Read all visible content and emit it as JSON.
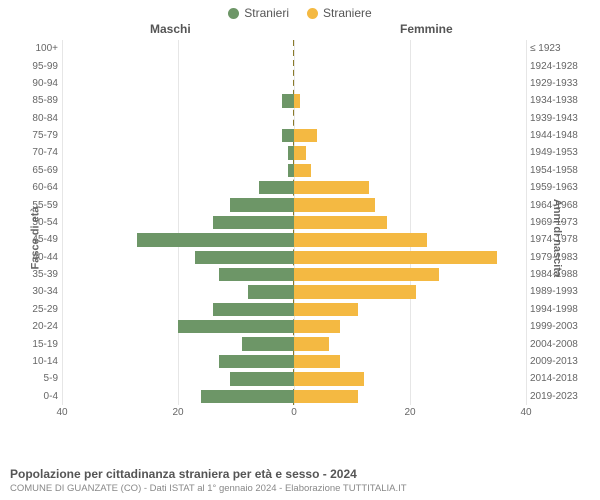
{
  "legend": {
    "male_label": "Stranieri",
    "female_label": "Straniere"
  },
  "headers": {
    "male": "Maschi",
    "female": "Femmine"
  },
  "axes": {
    "left_title": "Fasce di età",
    "right_title": "Anni di nascita",
    "xmax": 40,
    "xticks_left": [
      40,
      20,
      0
    ],
    "xticks_right": [
      0,
      20,
      40
    ]
  },
  "colors": {
    "male": "#6d9667",
    "female": "#f4b942",
    "grid": "#e6e6e6",
    "center_dash": "#8a7a2a",
    "background": "#ffffff",
    "text": "#666666",
    "title": "#555555"
  },
  "typography": {
    "label_fontsize": 10,
    "header_fontsize": 12,
    "legend_fontsize": 12,
    "title_fontsize": 12,
    "subtitle_fontsize": 9.5
  },
  "chart": {
    "type": "population-pyramid",
    "rows": [
      {
        "age": "100+",
        "birth": "≤ 1923",
        "m": 0,
        "f": 0
      },
      {
        "age": "95-99",
        "birth": "1924-1928",
        "m": 0,
        "f": 0
      },
      {
        "age": "90-94",
        "birth": "1929-1933",
        "m": 0,
        "f": 0
      },
      {
        "age": "85-89",
        "birth": "1934-1938",
        "m": 2,
        "f": 1
      },
      {
        "age": "80-84",
        "birth": "1939-1943",
        "m": 0,
        "f": 0
      },
      {
        "age": "75-79",
        "birth": "1944-1948",
        "m": 2,
        "f": 4
      },
      {
        "age": "70-74",
        "birth": "1949-1953",
        "m": 1,
        "f": 2
      },
      {
        "age": "65-69",
        "birth": "1954-1958",
        "m": 1,
        "f": 3
      },
      {
        "age": "60-64",
        "birth": "1959-1963",
        "m": 6,
        "f": 13
      },
      {
        "age": "55-59",
        "birth": "1964-1968",
        "m": 11,
        "f": 14
      },
      {
        "age": "50-54",
        "birth": "1969-1973",
        "m": 14,
        "f": 16
      },
      {
        "age": "45-49",
        "birth": "1974-1978",
        "m": 27,
        "f": 23
      },
      {
        "age": "40-44",
        "birth": "1979-1983",
        "m": 17,
        "f": 35
      },
      {
        "age": "35-39",
        "birth": "1984-1988",
        "m": 13,
        "f": 25
      },
      {
        "age": "30-34",
        "birth": "1989-1993",
        "m": 8,
        "f": 21
      },
      {
        "age": "25-29",
        "birth": "1994-1998",
        "m": 14,
        "f": 11
      },
      {
        "age": "20-24",
        "birth": "1999-2003",
        "m": 20,
        "f": 8
      },
      {
        "age": "15-19",
        "birth": "2004-2008",
        "m": 9,
        "f": 6
      },
      {
        "age": "10-14",
        "birth": "2009-2013",
        "m": 13,
        "f": 8
      },
      {
        "age": "5-9",
        "birth": "2014-2018",
        "m": 11,
        "f": 12
      },
      {
        "age": "0-4",
        "birth": "2019-2023",
        "m": 16,
        "f": 11
      }
    ]
  },
  "footer": {
    "title": "Popolazione per cittadinanza straniera per età e sesso - 2024",
    "subtitle": "COMUNE DI GUANZATE (CO) - Dati ISTAT al 1° gennaio 2024 - Elaborazione TUTTITALIA.IT"
  }
}
